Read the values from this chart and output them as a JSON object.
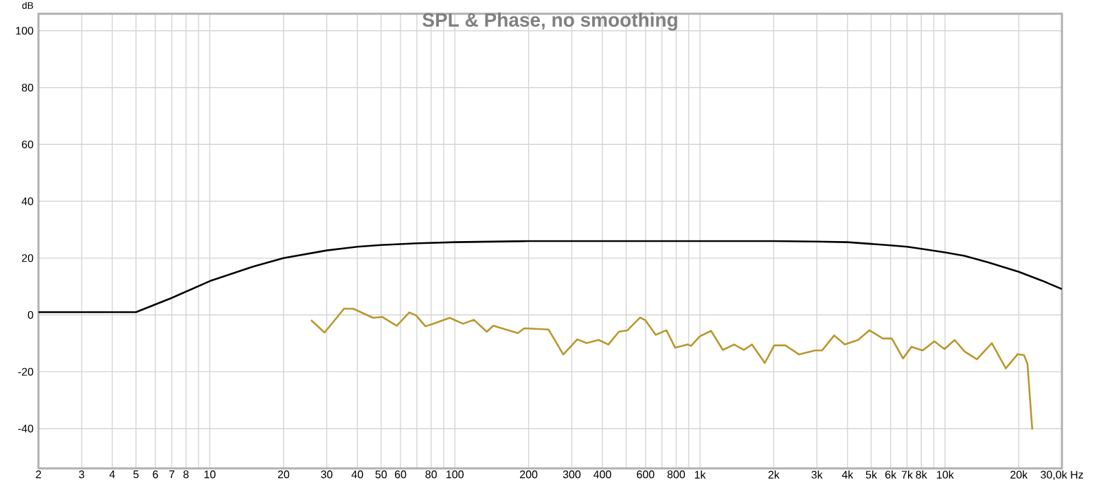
{
  "chart_data": {
    "type": "line",
    "title": "SPL & Phase, no smoothing",
    "ylabel": "dB",
    "log": "x",
    "grid": true,
    "xlim": [
      2,
      30000
    ],
    "ylim": [
      -54,
      106
    ],
    "xticks": [
      2,
      3,
      4,
      5,
      6,
      7,
      8,
      {
        "value": 9,
        "label": null
      },
      10,
      20,
      30,
      40,
      50,
      60,
      {
        "value": 70,
        "label": null
      },
      80,
      {
        "value": 90,
        "label": null
      },
      100,
      200,
      300,
      400,
      {
        "value": 500,
        "label": null
      },
      600,
      {
        "value": 700,
        "label": null
      },
      800,
      {
        "value": 900,
        "label": null
      },
      {
        "value": 1000,
        "label": "1k"
      },
      {
        "value": 2000,
        "label": "2k"
      },
      {
        "value": 3000,
        "label": "3k"
      },
      {
        "value": 4000,
        "label": "4k"
      },
      {
        "value": 5000,
        "label": "5k"
      },
      {
        "value": 6000,
        "label": "6k"
      },
      {
        "value": 7000,
        "label": "7k"
      },
      {
        "value": 8000,
        "label": "8k"
      },
      {
        "value": 9000,
        "label": null
      },
      {
        "value": 10000,
        "label": "10k"
      },
      {
        "value": 20000,
        "label": "20k"
      },
      {
        "value": 30000,
        "label": "30,0k Hz"
      }
    ],
    "yticks": [
      -40,
      -20,
      0,
      20,
      40,
      60,
      80,
      100
    ],
    "series": [
      {
        "color": "#000000",
        "x": [
          2,
          5,
          7,
          10,
          15,
          20,
          30,
          40,
          50,
          70,
          100,
          200,
          500,
          1000,
          2000,
          3000,
          4000,
          5000,
          6000,
          7000,
          8000,
          10000,
          12000,
          15000,
          20000,
          25000,
          30000
        ],
        "values": [
          1,
          1,
          6,
          11.9,
          17,
          20,
          22.7,
          24,
          24.6,
          25.2,
          25.6,
          26,
          26,
          26,
          26,
          25.8,
          25.6,
          25,
          24.5,
          24,
          23.3,
          22,
          20.8,
          18.5,
          15.2,
          12,
          9.1
        ]
      },
      {
        "color": "#b8962a",
        "x": [
          25.9,
          29.4,
          35.3,
          38.5,
          46.4,
          50.5,
          57.9,
          65.2,
          69.5,
          75.9,
          84.2,
          95.2,
          108,
          119.5,
          135,
          143.5,
          180.6,
          192,
          241,
          277,
          316,
          345,
          386,
          423,
          467,
          506,
          570,
          598,
          660,
          730,
          792,
          893,
          920,
          1000,
          1110,
          1240,
          1380,
          1510,
          1630,
          1840,
          2010,
          2230,
          2540,
          2950,
          3150,
          3530,
          3900,
          4420,
          4910,
          5580,
          6070,
          6740,
          7300,
          8100,
          9050,
          9950,
          10950,
          12000,
          13500,
          15530,
          17700,
          19800,
          21000,
          21700,
          22700
        ],
        "values": [
          -1.8,
          -6.2,
          2.2,
          2.2,
          -1,
          -0.7,
          -3.8,
          0.9,
          -0.2,
          -4,
          -2.7,
          -1,
          -3.1,
          -1.7,
          -5.9,
          -3.8,
          -6.4,
          -4.7,
          -5.1,
          -13.9,
          -8.6,
          -9.9,
          -8.8,
          -10.4,
          -5.9,
          -5.4,
          -0.9,
          -1.8,
          -7,
          -5.4,
          -11.5,
          -10.4,
          -10.9,
          -7.5,
          -5.6,
          -12.3,
          -10.4,
          -12.3,
          -10.4,
          -16.9,
          -10.7,
          -10.7,
          -13.9,
          -12.5,
          -12.5,
          -7.2,
          -10.4,
          -8.8,
          -5.4,
          -8.3,
          -8.3,
          -15.3,
          -11.2,
          -12.5,
          -9.3,
          -12,
          -8.8,
          -12.8,
          -15.6,
          -9.9,
          -18.8,
          -13.8,
          -14.1,
          -17.2,
          -40.3
        ]
      }
    ]
  }
}
